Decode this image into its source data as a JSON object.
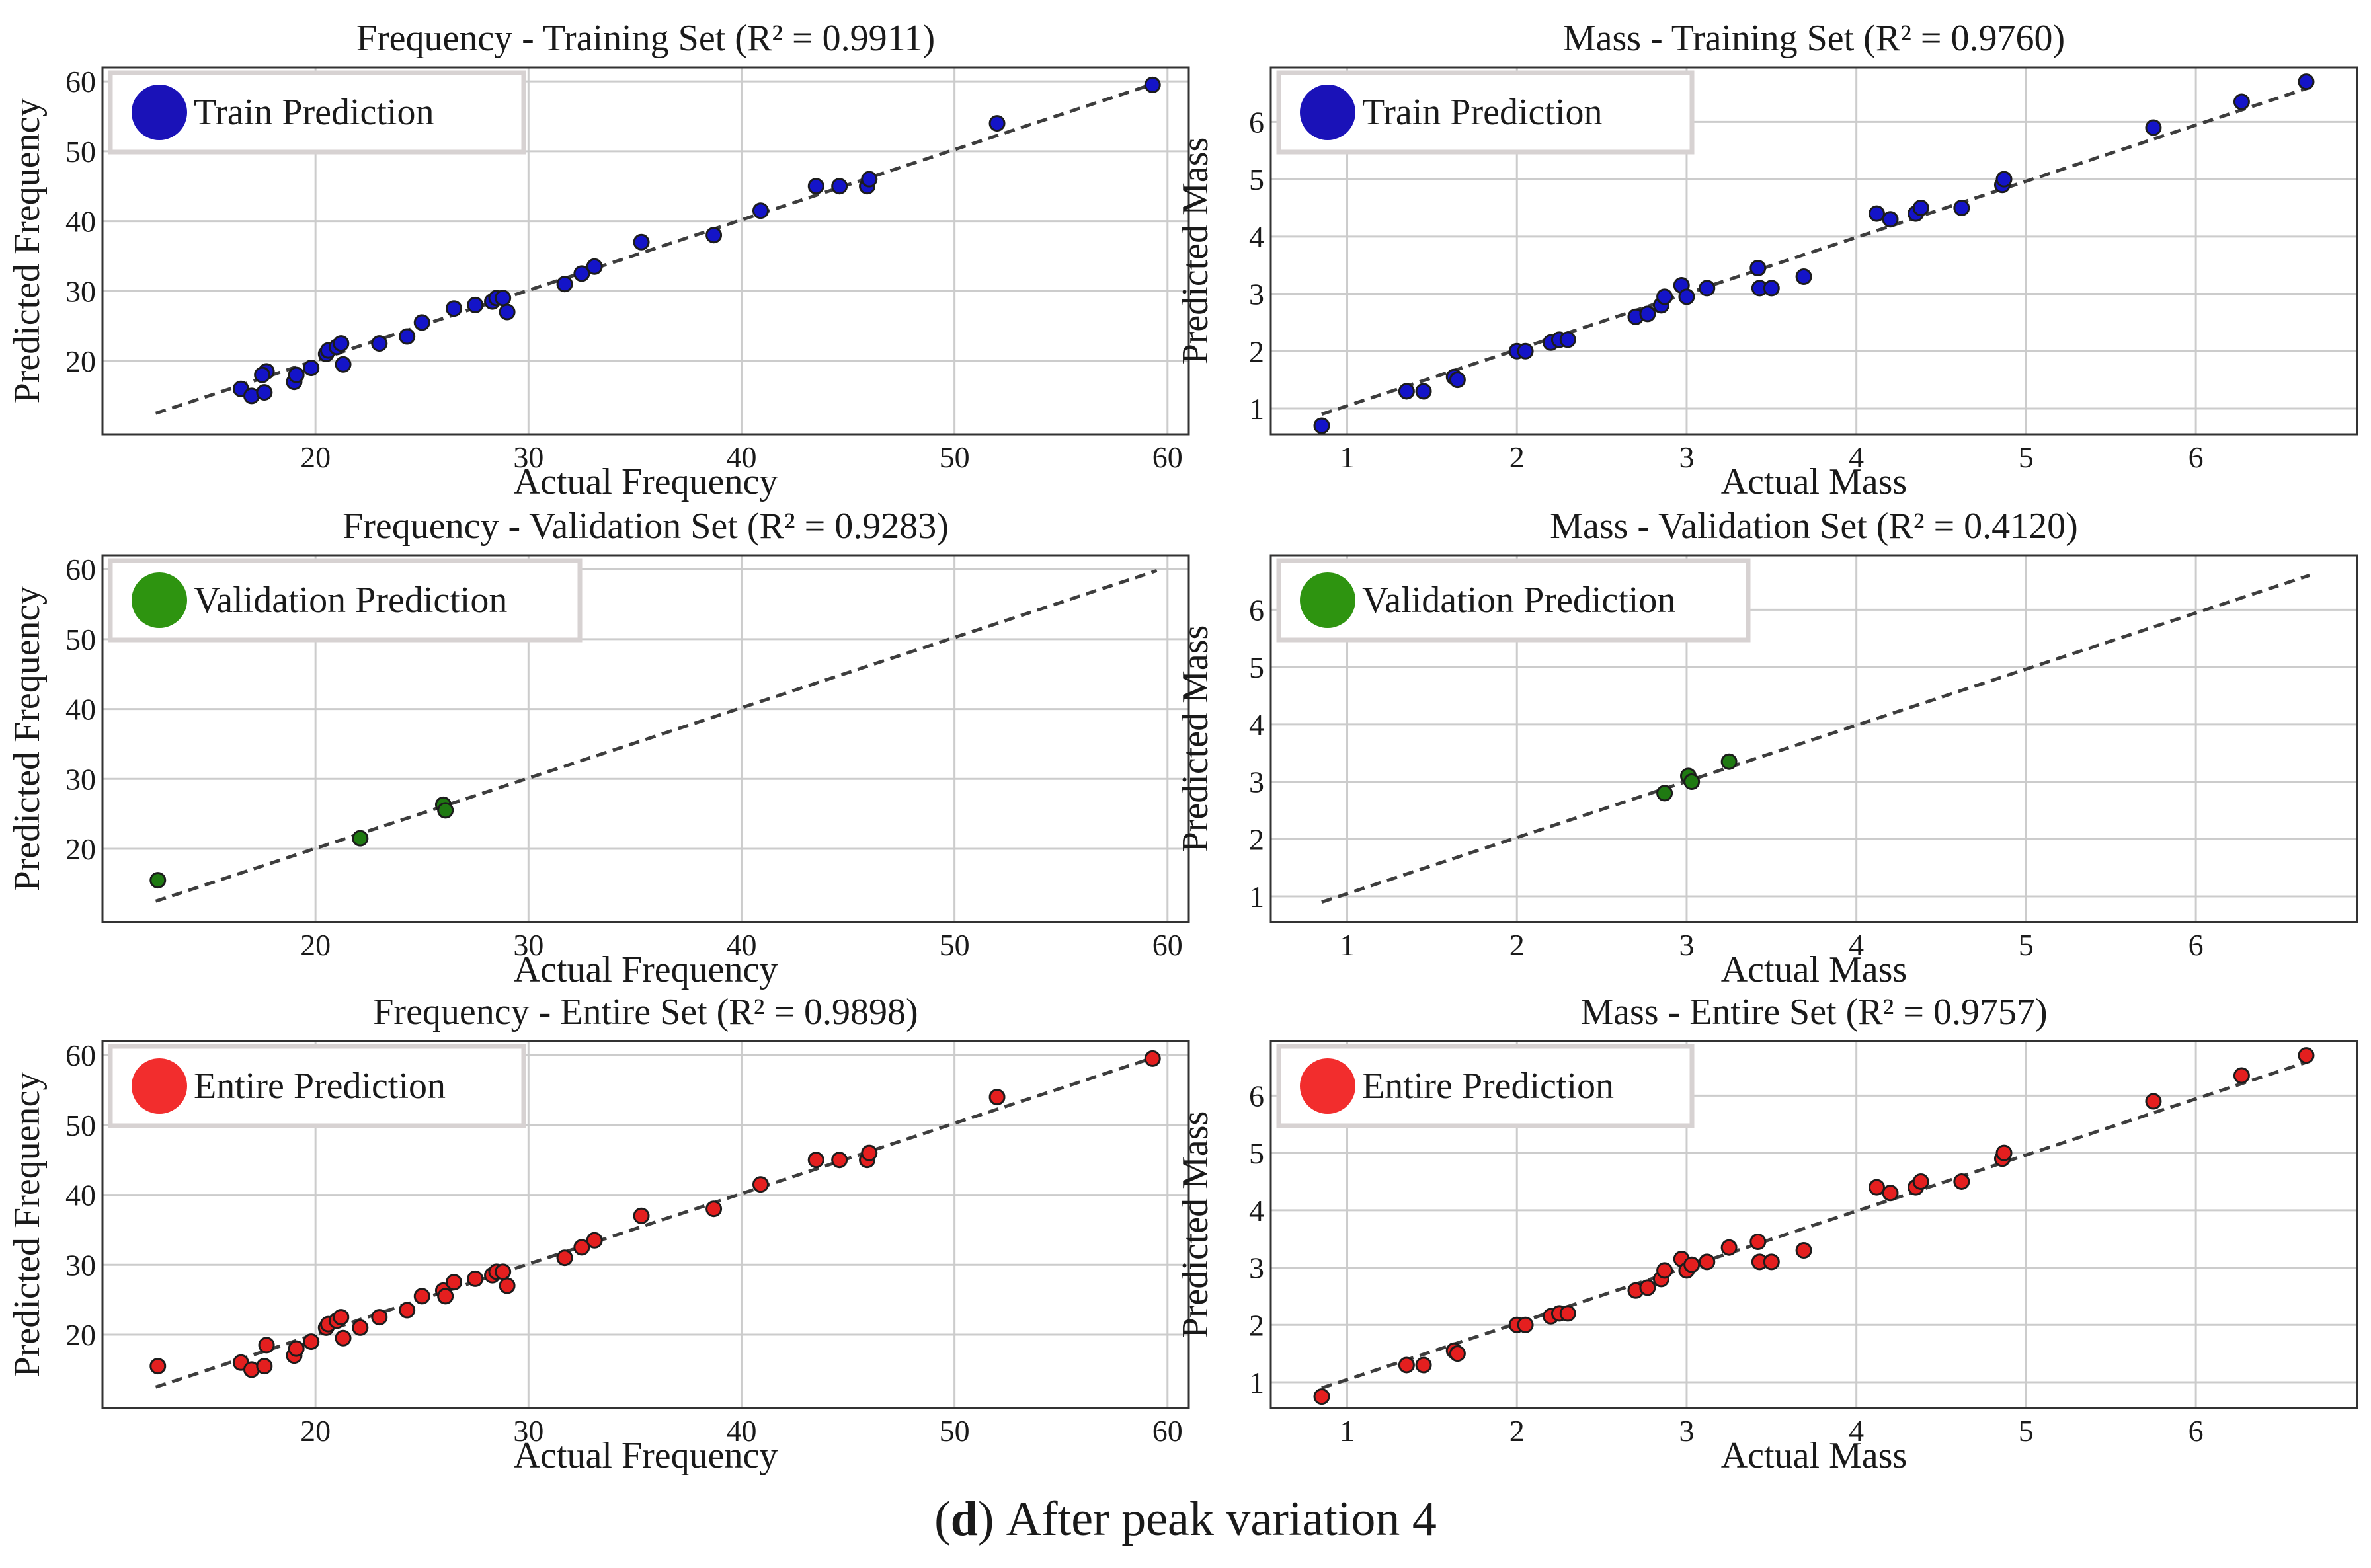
{
  "caption": {
    "label": "d",
    "text": "After peak variation 4",
    "open": "(",
    "close": ")"
  },
  "colors": {
    "train": "#1a12b8",
    "validation": "#2e9410",
    "entire": "#f22d2d",
    "train_point": "#1414c8",
    "validation_point": "#1f7a12",
    "entire_point": "#e41f1f"
  },
  "chart_data": [
    {
      "type": "scatter",
      "title": "Frequency - Training Set (R² = 0.9911)",
      "xlabel": "Actual Frequency",
      "ylabel": "Predicted Frequency",
      "legend": "Train Prediction",
      "series_color": "train",
      "xlim": [
        10,
        61
      ],
      "ylim": [
        9.5,
        62
      ],
      "xticks": [
        20,
        30,
        40,
        50,
        60
      ],
      "yticks": [
        20,
        30,
        40,
        50,
        60
      ],
      "fit_line": [
        [
          12.5,
          12.5
        ],
        [
          59.5,
          59.8
        ]
      ],
      "points": [
        [
          16.5,
          16
        ],
        [
          17,
          15
        ],
        [
          17.6,
          15.5
        ],
        [
          17.7,
          18.5
        ],
        [
          17.5,
          18
        ],
        [
          19,
          17
        ],
        [
          19.1,
          18
        ],
        [
          19.8,
          19
        ],
        [
          20.5,
          21
        ],
        [
          20.6,
          21.5
        ],
        [
          21,
          22
        ],
        [
          21.2,
          22.5
        ],
        [
          21.3,
          19.5
        ],
        [
          23,
          22.5
        ],
        [
          24.3,
          23.5
        ],
        [
          25,
          25.5
        ],
        [
          26.5,
          27.5
        ],
        [
          27.5,
          28
        ],
        [
          28.3,
          28.5
        ],
        [
          28.5,
          29
        ],
        [
          28.8,
          29
        ],
        [
          29,
          27
        ],
        [
          31.7,
          31
        ],
        [
          32.5,
          32.5
        ],
        [
          33.1,
          33.5
        ],
        [
          35.3,
          37
        ],
        [
          38.7,
          38
        ],
        [
          40.9,
          41.5
        ],
        [
          43.5,
          45
        ],
        [
          44.6,
          45
        ],
        [
          45.9,
          45
        ],
        [
          46,
          46
        ],
        [
          52,
          54
        ],
        [
          59.3,
          59.5
        ]
      ]
    },
    {
      "type": "scatter",
      "title": "Mass - Training Set (R² = 0.9760)",
      "xlabel": "Actual Mass",
      "ylabel": "Predicted Mass",
      "legend": "Train Prediction",
      "series_color": "train",
      "xlim": [
        0.55,
        6.95
      ],
      "ylim": [
        0.55,
        6.95
      ],
      "xticks": [
        1,
        2,
        3,
        4,
        5,
        6
      ],
      "yticks": [
        1,
        2,
        3,
        4,
        5,
        6
      ],
      "fit_line": [
        [
          0.85,
          0.9
        ],
        [
          6.67,
          6.6
        ]
      ],
      "points": [
        [
          0.85,
          0.7
        ],
        [
          1.35,
          1.3
        ],
        [
          1.45,
          1.3
        ],
        [
          1.63,
          1.55
        ],
        [
          1.65,
          1.5
        ],
        [
          2,
          2
        ],
        [
          2.05,
          2
        ],
        [
          2.2,
          2.15
        ],
        [
          2.25,
          2.2
        ],
        [
          2.3,
          2.2
        ],
        [
          2.7,
          2.6
        ],
        [
          2.77,
          2.65
        ],
        [
          2.85,
          2.8
        ],
        [
          2.87,
          2.95
        ],
        [
          2.97,
          3.15
        ],
        [
          3,
          2.95
        ],
        [
          3.12,
          3.1
        ],
        [
          3.42,
          3.45
        ],
        [
          3.43,
          3.1
        ],
        [
          3.5,
          3.1
        ],
        [
          3.69,
          3.3
        ],
        [
          4.12,
          4.4
        ],
        [
          4.2,
          4.3
        ],
        [
          4.35,
          4.4
        ],
        [
          4.38,
          4.5
        ],
        [
          4.62,
          4.5
        ],
        [
          4.86,
          4.9
        ],
        [
          4.87,
          5
        ],
        [
          5.75,
          5.9
        ],
        [
          6.27,
          6.35
        ],
        [
          6.65,
          6.7
        ]
      ]
    },
    {
      "type": "scatter",
      "title": "Frequency - Validation Set (R² = 0.9283)",
      "xlabel": "Actual Frequency",
      "ylabel": "Predicted Frequency",
      "legend": "Validation Prediction",
      "series_color": "validation",
      "xlim": [
        10,
        61
      ],
      "ylim": [
        9.5,
        62
      ],
      "xticks": [
        20,
        30,
        40,
        50,
        60
      ],
      "yticks": [
        20,
        30,
        40,
        50,
        60
      ],
      "fit_line": [
        [
          12.5,
          12.5
        ],
        [
          59.5,
          59.8
        ]
      ],
      "points": [
        [
          12.6,
          15.5
        ],
        [
          22.1,
          21.5
        ],
        [
          26,
          26.3
        ],
        [
          26.1,
          25.5
        ]
      ]
    },
    {
      "type": "scatter",
      "title": "Mass - Validation Set (R² = 0.4120)",
      "xlabel": "Actual Mass",
      "ylabel": "Predicted Mass",
      "legend": "Validation Prediction",
      "series_color": "validation",
      "xlim": [
        0.55,
        6.95
      ],
      "ylim": [
        0.55,
        6.95
      ],
      "xticks": [
        1,
        2,
        3,
        4,
        5,
        6
      ],
      "yticks": [
        1,
        2,
        3,
        4,
        5,
        6
      ],
      "fit_line": [
        [
          0.85,
          0.9
        ],
        [
          6.67,
          6.6
        ]
      ],
      "points": [
        [
          2.87,
          2.8
        ],
        [
          3.01,
          3.1
        ],
        [
          3.03,
          3.0
        ],
        [
          3.25,
          3.35
        ]
      ]
    },
    {
      "type": "scatter",
      "title": "Frequency - Entire Set (R² = 0.9898)",
      "xlabel": "Actual Frequency",
      "ylabel": "Predicted Frequency",
      "legend": "Entire Prediction",
      "series_color": "entire",
      "xlim": [
        10,
        61
      ],
      "ylim": [
        9.5,
        62
      ],
      "xticks": [
        20,
        30,
        40,
        50,
        60
      ],
      "yticks": [
        20,
        30,
        40,
        50,
        60
      ],
      "fit_line": [
        [
          12.5,
          12.5
        ],
        [
          59.5,
          59.8
        ]
      ],
      "points": [
        [
          12.6,
          15.5
        ],
        [
          16.5,
          16
        ],
        [
          17,
          15
        ],
        [
          17.6,
          15.5
        ],
        [
          17.7,
          18.5
        ],
        [
          19,
          17
        ],
        [
          19.1,
          18
        ],
        [
          19.8,
          19
        ],
        [
          20.5,
          21
        ],
        [
          20.6,
          21.5
        ],
        [
          21,
          22
        ],
        [
          21.2,
          22.5
        ],
        [
          21.3,
          19.5
        ],
        [
          22.1,
          21
        ],
        [
          23,
          22.5
        ],
        [
          24.3,
          23.5
        ],
        [
          25,
          25.5
        ],
        [
          26,
          26.3
        ],
        [
          26.1,
          25.5
        ],
        [
          26.5,
          27.5
        ],
        [
          27.5,
          28
        ],
        [
          28.3,
          28.5
        ],
        [
          28.5,
          29
        ],
        [
          28.8,
          29
        ],
        [
          29,
          27
        ],
        [
          31.7,
          31
        ],
        [
          32.5,
          32.5
        ],
        [
          33.1,
          33.5
        ],
        [
          35.3,
          37
        ],
        [
          38.7,
          38
        ],
        [
          40.9,
          41.5
        ],
        [
          43.5,
          45
        ],
        [
          44.6,
          45
        ],
        [
          45.9,
          45
        ],
        [
          46,
          46
        ],
        [
          52,
          54
        ],
        [
          59.3,
          59.5
        ]
      ]
    },
    {
      "type": "scatter",
      "title": "Mass - Entire Set (R² = 0.9757)",
      "xlabel": "Actual Mass",
      "ylabel": "Predicted Mass",
      "legend": "Entire Prediction",
      "series_color": "entire",
      "xlim": [
        0.55,
        6.95
      ],
      "ylim": [
        0.55,
        6.95
      ],
      "xticks": [
        1,
        2,
        3,
        4,
        5,
        6
      ],
      "yticks": [
        1,
        2,
        3,
        4,
        5,
        6
      ],
      "fit_line": [
        [
          0.85,
          0.9
        ],
        [
          6.67,
          6.6
        ]
      ],
      "points": [
        [
          0.85,
          0.75
        ],
        [
          1.35,
          1.3
        ],
        [
          1.45,
          1.3
        ],
        [
          1.63,
          1.55
        ],
        [
          1.65,
          1.5
        ],
        [
          2,
          2
        ],
        [
          2.05,
          2
        ],
        [
          2.2,
          2.15
        ],
        [
          2.25,
          2.2
        ],
        [
          2.3,
          2.2
        ],
        [
          2.7,
          2.6
        ],
        [
          2.77,
          2.65
        ],
        [
          2.85,
          2.8
        ],
        [
          2.87,
          2.95
        ],
        [
          2.97,
          3.15
        ],
        [
          3,
          2.95
        ],
        [
          3.03,
          3.05
        ],
        [
          3.12,
          3.1
        ],
        [
          3.25,
          3.35
        ],
        [
          3.42,
          3.45
        ],
        [
          3.43,
          3.1
        ],
        [
          3.5,
          3.1
        ],
        [
          3.69,
          3.3
        ],
        [
          4.12,
          4.4
        ],
        [
          4.2,
          4.3
        ],
        [
          4.35,
          4.4
        ],
        [
          4.38,
          4.5
        ],
        [
          4.62,
          4.5
        ],
        [
          4.86,
          4.9
        ],
        [
          4.87,
          5
        ],
        [
          5.75,
          5.9
        ],
        [
          6.27,
          6.35
        ],
        [
          6.65,
          6.7
        ]
      ]
    }
  ]
}
